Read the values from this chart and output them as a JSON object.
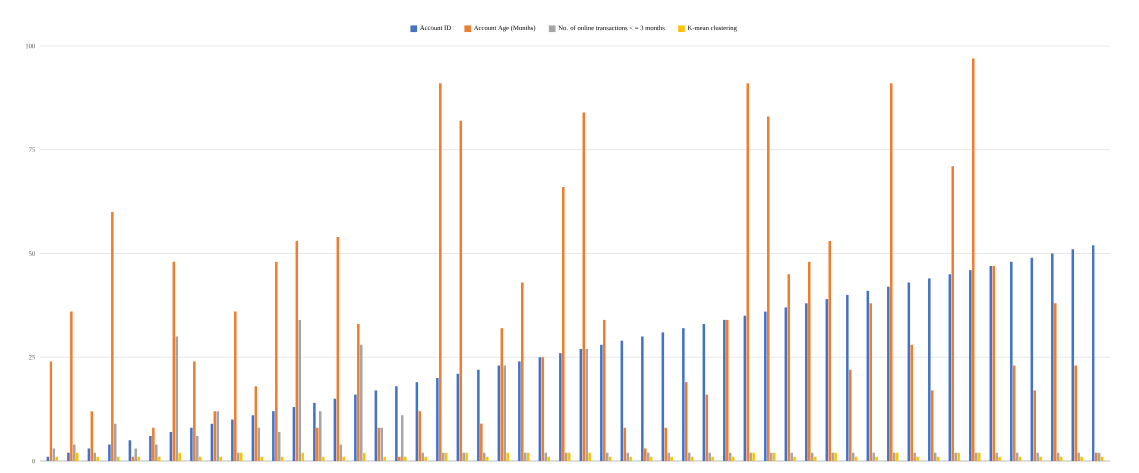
{
  "chart_data": {
    "type": "bar",
    "categories": [
      null,
      null,
      null,
      null,
      null,
      null,
      null,
      null,
      null,
      null,
      null,
      null,
      null,
      null,
      null,
      null,
      null,
      null,
      null,
      null,
      null,
      null,
      null,
      null,
      null,
      null,
      null,
      null,
      null,
      null,
      null,
      null,
      null,
      null,
      null,
      null,
      null,
      null,
      null,
      null,
      null,
      null,
      null,
      null,
      null,
      null,
      null,
      null,
      null,
      null,
      null,
      null
    ],
    "series": [
      {
        "name": "Account ID",
        "color": "#4472c4",
        "values": [
          1,
          2,
          3,
          4,
          5,
          6,
          7,
          8,
          9,
          10,
          11,
          12,
          13,
          14,
          15,
          16,
          17,
          18,
          19,
          20,
          21,
          22,
          23,
          24,
          25,
          26,
          27,
          28,
          29,
          30,
          31,
          32,
          33,
          34,
          35,
          36,
          37,
          38,
          39,
          40,
          41,
          42,
          43,
          44,
          45,
          46,
          47,
          48,
          49,
          50,
          51,
          52
        ]
      },
      {
        "name": "Account Age (Months)",
        "color": "#ed7d31",
        "values": [
          24,
          36,
          12,
          60,
          1,
          8,
          48,
          24,
          12,
          36,
          18,
          48,
          53,
          8,
          54,
          33,
          8,
          1,
          12,
          91,
          82,
          9,
          32,
          43,
          25,
          66,
          84,
          34,
          8,
          3,
          8,
          19,
          16,
          34,
          91,
          83,
          45,
          48,
          53,
          22,
          38,
          91,
          28,
          17,
          71,
          97,
          47,
          23,
          17,
          38,
          23,
          2
        ]
      },
      {
        "name": "No. of online transactions < = 3 months",
        "color": "#a5a5a5",
        "values": [
          3,
          4,
          2,
          9,
          3,
          4,
          30,
          6,
          12,
          2,
          8,
          7,
          34,
          12,
          4,
          28,
          8,
          11,
          2,
          2,
          2,
          2,
          23,
          2,
          2,
          2,
          27,
          2,
          2,
          2,
          2,
          2,
          2,
          2,
          2,
          2,
          2,
          2,
          2,
          2,
          2,
          2,
          2,
          2,
          2,
          2,
          2,
          2,
          2,
          2,
          2,
          2
        ]
      },
      {
        "name": "K-mean clustering",
        "color": "#ffc000",
        "values": [
          1,
          2,
          1,
          1,
          1,
          1,
          2,
          1,
          1,
          2,
          1,
          1,
          2,
          1,
          1,
          2,
          1,
          1,
          1,
          2,
          2,
          1,
          2,
          2,
          1,
          2,
          2,
          1,
          1,
          1,
          1,
          1,
          1,
          1,
          2,
          2,
          1,
          1,
          2,
          1,
          1,
          2,
          1,
          1,
          2,
          2,
          1,
          1,
          1,
          1,
          1,
          1
        ]
      }
    ],
    "ylim": [
      0,
      100
    ],
    "yticks": [
      0,
      25,
      50,
      75,
      100
    ],
    "grid": "y",
    "legend": "top",
    "tick_labels": "y"
  }
}
